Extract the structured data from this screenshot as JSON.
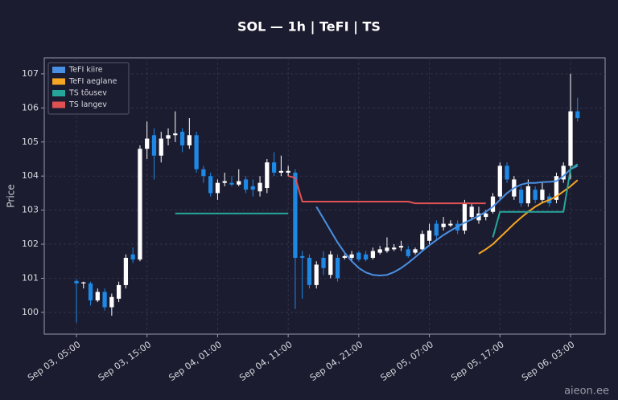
{
  "chart_data": {
    "type": "candlestick",
    "title": "SOL — 1h  |  TeFI  |  TS",
    "y_label": "Price",
    "watermark": "aieon.ee",
    "categories": [
      "Sep 03, 05:00",
      null,
      null,
      null,
      null,
      null,
      null,
      null,
      null,
      null,
      "Sep 03, 15:00",
      null,
      null,
      null,
      null,
      null,
      null,
      null,
      null,
      null,
      "Sep 04, 01:00",
      null,
      null,
      null,
      null,
      null,
      null,
      null,
      null,
      null,
      "Sep 04, 11:00",
      null,
      null,
      null,
      null,
      null,
      null,
      null,
      null,
      null,
      "Sep 04, 21:00",
      null,
      null,
      null,
      null,
      null,
      null,
      null,
      null,
      null,
      "Sep 05, 07:00",
      null,
      null,
      null,
      null,
      null,
      null,
      null,
      null,
      null,
      "Sep 05, 17:00",
      null,
      null,
      null,
      null,
      null,
      null,
      null,
      null,
      null,
      "Sep 06, 03:00",
      null
    ],
    "open": [
      100.92,
      100.85,
      100.85,
      100.35,
      100.6,
      100.15,
      100.4,
      100.8,
      101.7,
      101.55,
      104.8,
      105.2,
      104.6,
      105.1,
      105.2,
      105.3,
      104.9,
      105.2,
      104.2,
      104.0,
      103.5,
      103.8,
      103.8,
      103.75,
      103.9,
      103.7,
      103.55,
      103.65,
      104.4,
      104.1,
      104.1,
      104.1,
      101.65,
      101.6,
      100.8,
      101.6,
      101.1,
      101.6,
      101.6,
      101.6,
      101.75,
      101.7,
      101.6,
      101.75,
      101.8,
      101.85,
      101.9,
      101.85,
      101.75,
      101.85,
      102.1,
      102.6,
      102.5,
      102.55,
      102.6,
      102.4,
      102.8,
      102.7,
      102.8,
      102.95,
      103.4,
      104.3,
      103.4,
      103.6,
      103.2,
      103.6,
      103.3,
      103.4,
      103.3,
      103.9,
      104.3,
      105.9
    ],
    "high": [
      100.98,
      100.9,
      100.9,
      100.7,
      100.7,
      100.55,
      100.9,
      101.7,
      101.9,
      104.9,
      105.6,
      105.4,
      105.3,
      105.4,
      105.9,
      105.4,
      105.7,
      105.3,
      104.3,
      104.1,
      103.9,
      104.1,
      104.0,
      104.2,
      104.0,
      103.9,
      104.0,
      104.5,
      104.7,
      104.6,
      104.3,
      104.2,
      101.8,
      101.7,
      101.5,
      101.8,
      101.8,
      101.7,
      101.7,
      101.8,
      101.8,
      101.8,
      101.9,
      101.95,
      102.2,
      102.0,
      102.1,
      101.95,
      101.9,
      102.4,
      102.6,
      102.7,
      102.8,
      102.7,
      102.7,
      103.3,
      103.2,
      103.1,
      103.0,
      103.5,
      104.4,
      104.4,
      104.0,
      103.7,
      103.9,
      103.7,
      103.8,
      103.5,
      104.1,
      104.4,
      107.0,
      106.3
    ],
    "low": [
      99.7,
      100.7,
      100.2,
      100.3,
      100.05,
      99.9,
      100.3,
      100.7,
      101.45,
      101.5,
      104.5,
      103.9,
      104.4,
      104.9,
      105.0,
      104.7,
      104.8,
      104.1,
      103.8,
      103.4,
      103.3,
      103.7,
      103.7,
      103.7,
      103.5,
      103.4,
      103.4,
      103.5,
      104.0,
      104.0,
      104.0,
      100.1,
      100.4,
      100.7,
      100.7,
      101.1,
      101.0,
      100.9,
      101.55,
      101.5,
      101.5,
      101.5,
      101.55,
      101.7,
      101.75,
      101.8,
      101.8,
      101.6,
      101.7,
      101.8,
      102.0,
      102.1,
      102.4,
      102.5,
      102.3,
      102.3,
      102.7,
      102.6,
      102.7,
      102.9,
      103.3,
      103.8,
      103.3,
      103.1,
      103.1,
      103.2,
      103.2,
      103.1,
      103.2,
      103.8,
      103.9,
      105.6
    ],
    "close": [
      100.85,
      100.88,
      100.35,
      100.6,
      100.15,
      100.45,
      100.8,
      101.6,
      101.55,
      104.8,
      105.1,
      104.6,
      105.1,
      105.2,
      105.25,
      104.9,
      105.2,
      104.2,
      104.0,
      103.5,
      103.8,
      103.85,
      103.75,
      103.85,
      103.6,
      103.6,
      103.8,
      104.4,
      104.1,
      104.15,
      104.15,
      101.6,
      101.6,
      100.8,
      101.4,
      101.3,
      101.7,
      101.0,
      101.65,
      101.7,
      101.55,
      101.55,
      101.8,
      101.85,
      101.9,
      101.9,
      101.95,
      101.65,
      101.85,
      102.3,
      102.4,
      102.25,
      102.6,
      102.6,
      102.4,
      103.2,
      103.1,
      102.9,
      102.9,
      103.4,
      104.3,
      103.9,
      103.9,
      103.2,
      103.7,
      103.3,
      103.6,
      103.2,
      104.0,
      104.3,
      105.9,
      105.7
    ],
    "up_color": "#ffffff",
    "down_color": "#1e88e5",
    "series": [
      {
        "name": "TeFI kiire",
        "color": "#4a90e2",
        "values": [
          null,
          null,
          null,
          null,
          null,
          null,
          null,
          null,
          null,
          null,
          null,
          null,
          null,
          null,
          null,
          null,
          null,
          null,
          null,
          null,
          null,
          null,
          null,
          null,
          null,
          null,
          null,
          null,
          null,
          null,
          null,
          null,
          null,
          null,
          103.1,
          102.75,
          102.4,
          102.05,
          101.75,
          101.5,
          101.3,
          101.17,
          101.1,
          101.08,
          101.1,
          101.18,
          101.3,
          101.45,
          101.62,
          101.8,
          101.97,
          102.12,
          102.27,
          102.4,
          102.52,
          102.63,
          102.73,
          102.83,
          102.95,
          103.1,
          103.3,
          103.5,
          103.65,
          103.75,
          103.8,
          103.8,
          103.82,
          103.83,
          103.85,
          104.0,
          104.2,
          104.3
        ]
      },
      {
        "name": "TeFI aeglane",
        "color": "#f5a623",
        "values": [
          null,
          null,
          null,
          null,
          null,
          null,
          null,
          null,
          null,
          null,
          null,
          null,
          null,
          null,
          null,
          null,
          null,
          null,
          null,
          null,
          null,
          null,
          null,
          null,
          null,
          null,
          null,
          null,
          null,
          null,
          null,
          null,
          null,
          null,
          null,
          null,
          null,
          null,
          null,
          null,
          null,
          null,
          null,
          null,
          null,
          null,
          null,
          null,
          null,
          null,
          null,
          null,
          null,
          null,
          null,
          null,
          null,
          101.72,
          101.85,
          102.0,
          102.2,
          102.4,
          102.6,
          102.78,
          102.95,
          103.1,
          103.22,
          103.3,
          103.4,
          103.55,
          103.7,
          103.88
        ]
      },
      {
        "name": "TS tõusev",
        "color": "#26a69a",
        "values": [
          null,
          null,
          null,
          null,
          null,
          null,
          null,
          null,
          null,
          null,
          null,
          null,
          null,
          null,
          102.9,
          102.9,
          102.9,
          102.9,
          102.9,
          102.9,
          102.9,
          102.9,
          102.9,
          102.9,
          102.9,
          102.9,
          102.9,
          102.9,
          102.9,
          102.9,
          102.9,
          null,
          null,
          null,
          null,
          null,
          null,
          null,
          null,
          null,
          null,
          null,
          null,
          null,
          null,
          null,
          null,
          null,
          null,
          null,
          null,
          null,
          null,
          null,
          null,
          null,
          null,
          null,
          null,
          102.2,
          102.95,
          102.95,
          102.95,
          102.95,
          102.95,
          102.95,
          102.95,
          102.95,
          102.95,
          102.95,
          104.2,
          104.35
        ]
      },
      {
        "name": "TS langev",
        "color": "#e05252",
        "values": [
          null,
          null,
          null,
          null,
          null,
          null,
          null,
          null,
          null,
          null,
          null,
          null,
          null,
          null,
          null,
          null,
          null,
          null,
          null,
          null,
          null,
          null,
          null,
          null,
          null,
          null,
          null,
          null,
          null,
          null,
          104.0,
          103.95,
          103.25,
          103.25,
          103.25,
          103.25,
          103.25,
          103.25,
          103.25,
          103.25,
          103.25,
          103.25,
          103.25,
          103.25,
          103.25,
          103.25,
          103.25,
          103.25,
          103.2,
          103.2,
          103.2,
          103.2,
          103.2,
          103.2,
          103.2,
          103.2,
          103.2,
          103.2,
          103.2,
          null,
          null,
          null,
          null,
          null,
          null,
          null,
          null,
          null,
          null,
          null,
          null,
          null
        ]
      }
    ],
    "ylim": [
      99.36,
      107.47
    ],
    "yticks": [
      100,
      101,
      102,
      103,
      104,
      105,
      106,
      107
    ],
    "grid": true,
    "legend": "upper-left"
  }
}
